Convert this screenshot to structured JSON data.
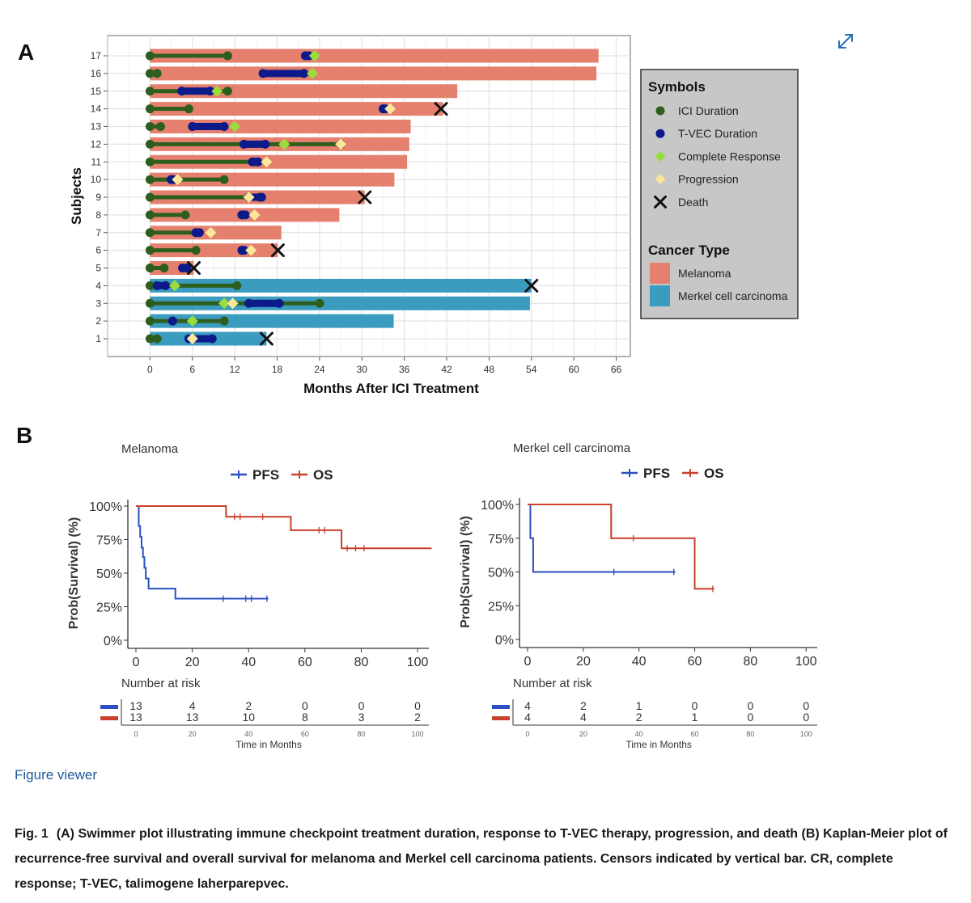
{
  "panel_a": {
    "letter": "A"
  },
  "panel_b": {
    "letter": "B"
  },
  "legend": {
    "symbols_title": "Symbols",
    "symbols": [
      {
        "label": "ICI Duration",
        "shape": "circle",
        "color": "#2e5e1e"
      },
      {
        "label": "T-VEC Duration",
        "shape": "circle",
        "color": "#0d1a8a"
      },
      {
        "label": "Complete Response",
        "shape": "diamond",
        "color": "#9adc3c"
      },
      {
        "label": "Progression",
        "shape": "diamond",
        "color": "#fbe79a"
      },
      {
        "label": "Death",
        "shape": "x",
        "color": "#111111"
      }
    ],
    "cancer_title": "Cancer Type",
    "cancer_types": [
      {
        "label": "Melanoma",
        "color": "#e5806e"
      },
      {
        "label": "Merkel cell carcinoma",
        "color": "#3b9cbf"
      }
    ]
  },
  "chart_data": [
    {
      "type": "swimmer",
      "xlabel": "Months After ICI Treatment",
      "ylabel": "Subjects",
      "xlim": [
        -6,
        68
      ],
      "xticks": [
        0,
        6,
        12,
        18,
        24,
        30,
        36,
        42,
        48,
        54,
        60,
        66
      ],
      "colors": {
        "Melanoma": "#e5806e",
        "Merkel cell carcinoma": "#3b9cbf",
        "ici": "#2e5e1e",
        "tvec": "#0d1a8a",
        "cr": "#9adc3c",
        "progression": "#fbe79a",
        "death": "#111111"
      },
      "subjects": [
        {
          "id": "1",
          "cancer": "Merkel cell carcinoma",
          "end": 16.5,
          "ici": [
            0,
            1
          ],
          "tvec": [
            5.5,
            8.8
          ],
          "cr": null,
          "progression": 6,
          "death": 16.5
        },
        {
          "id": "2",
          "cancer": "Merkel cell carcinoma",
          "end": 34.5,
          "ici": [
            0,
            10.5
          ],
          "tvec": [
            3.2,
            3.2
          ],
          "cr": 6,
          "progression": null,
          "death": null
        },
        {
          "id": "3",
          "cancer": "Merkel cell carcinoma",
          "end": 53.8,
          "ici": [
            0,
            24
          ],
          "tvec": [
            14,
            18.3
          ],
          "cr": 10.5,
          "progression": 11.7,
          "death": null
        },
        {
          "id": "4",
          "cancer": "Merkel cell carcinoma",
          "end": 54,
          "ici": [
            0,
            12.3
          ],
          "tvec": [
            1,
            2.2
          ],
          "cr": 3.5,
          "progression": null,
          "death": 54
        },
        {
          "id": "5",
          "cancer": "Melanoma",
          "end": 6.2,
          "ici": [
            0,
            2
          ],
          "tvec": [
            4.6,
            5.2
          ],
          "cr": null,
          "progression": null,
          "death": 6.2
        },
        {
          "id": "6",
          "cancer": "Melanoma",
          "end": 18.1,
          "ici": [
            0,
            6.5
          ],
          "tvec": [
            13,
            13.3
          ],
          "cr": null,
          "progression": 14.3,
          "death": 18.1
        },
        {
          "id": "7",
          "cancer": "Melanoma",
          "end": 18.6,
          "ici": [
            0,
            6.5
          ],
          "tvec": [
            6.5,
            7
          ],
          "cr": null,
          "progression": 8.6,
          "death": null
        },
        {
          "id": "8",
          "cancer": "Melanoma",
          "end": 26.8,
          "ici": [
            0,
            5
          ],
          "tvec": [
            13,
            13.5
          ],
          "cr": null,
          "progression": 14.8,
          "death": null
        },
        {
          "id": "9",
          "cancer": "Melanoma",
          "end": 30.4,
          "ici": [
            0,
            15.5
          ],
          "tvec": [
            14,
            15.8
          ],
          "cr": null,
          "progression": 14,
          "death": 30.4
        },
        {
          "id": "10",
          "cancer": "Melanoma",
          "end": 34.6,
          "ici": [
            0,
            10.5
          ],
          "tvec": [
            3,
            3.3
          ],
          "cr": null,
          "progression": 3.9,
          "death": null
        },
        {
          "id": "11",
          "cancer": "Melanoma",
          "end": 36.4,
          "ici": [
            0,
            15
          ],
          "tvec": [
            14.5,
            15.3
          ],
          "cr": null,
          "progression": 16.5,
          "death": null
        },
        {
          "id": "12",
          "cancer": "Melanoma",
          "end": 36.7,
          "ici": [
            0,
            27
          ],
          "tvec": [
            13.3,
            16.3
          ],
          "cr": 19,
          "progression": 27,
          "death": null
        },
        {
          "id": "13",
          "cancer": "Melanoma",
          "end": 36.9,
          "ici": [
            0,
            1.5
          ],
          "tvec": [
            6,
            10.5
          ],
          "cr": 12,
          "progression": null,
          "death": null
        },
        {
          "id": "14",
          "cancer": "Melanoma",
          "end": 41.5,
          "ici": [
            0,
            5.5
          ],
          "tvec": [
            33,
            33.3
          ],
          "cr": null,
          "progression": 34,
          "death": 41.2
        },
        {
          "id": "15",
          "cancer": "Melanoma",
          "end": 43.5,
          "ici": [
            0,
            11
          ],
          "tvec": [
            4.5,
            8.5
          ],
          "cr": 9.5,
          "progression": null,
          "death": null
        },
        {
          "id": "16",
          "cancer": "Melanoma",
          "end": 63.2,
          "ici": [
            0,
            1
          ],
          "tvec": [
            16,
            21.8
          ],
          "cr": 23,
          "progression": null,
          "death": null
        },
        {
          "id": "17",
          "cancer": "Melanoma",
          "end": 63.5,
          "ici": [
            0,
            11
          ],
          "tvec": [
            22,
            22.5
          ],
          "cr": 23.3,
          "progression": null,
          "death": null
        }
      ]
    },
    {
      "type": "line",
      "title": "Melanoma",
      "ylabel": "Prob(Survival) (%)",
      "xlim": [
        0,
        104
      ],
      "ylim": [
        0,
        100
      ],
      "xticks": [
        0,
        20,
        40,
        60,
        80,
        100
      ],
      "yticks": [
        "0%",
        "25%",
        "50%",
        "75%",
        "100%"
      ],
      "legend": "top",
      "series": [
        {
          "name": "PFS",
          "color": "#2a4fc0",
          "steps": [
            [
              0,
              100
            ],
            [
              1,
              85
            ],
            [
              1.5,
              77
            ],
            [
              2,
              69
            ],
            [
              2.5,
              62
            ],
            [
              3,
              54
            ],
            [
              3.5,
              46
            ],
            [
              4.5,
              38.5
            ],
            [
              14,
              31
            ],
            [
              47,
              31
            ]
          ],
          "censors": [
            [
              31,
              31
            ],
            [
              39,
              31
            ],
            [
              41,
              31
            ],
            [
              46.5,
              31
            ]
          ]
        },
        {
          "name": "OS",
          "color": "#c9402c",
          "steps": [
            [
              0,
              100
            ],
            [
              32,
              100
            ],
            [
              32,
              92
            ],
            [
              55,
              92
            ],
            [
              55,
              82
            ],
            [
              73,
              82
            ],
            [
              73,
              68.5
            ],
            [
              105,
              68.5
            ]
          ],
          "censors": [
            [
              35,
              92
            ],
            [
              37,
              92
            ],
            [
              45,
              92
            ],
            [
              65,
              82
            ],
            [
              67,
              82
            ],
            [
              75,
              68.5
            ],
            [
              78,
              68.5
            ],
            [
              81,
              68.5
            ]
          ]
        }
      ],
      "risk_table": {
        "title": "Number at risk",
        "xlabel": "Time in Months",
        "times": [
          0,
          20,
          40,
          60,
          80,
          100
        ],
        "rows": [
          {
            "color": "#2a4fc0",
            "values": [
              "13",
              "4",
              "2",
              "0",
              "0",
              "0"
            ]
          },
          {
            "color": "#c9402c",
            "values": [
              "13",
              "13",
              "10",
              "8",
              "3",
              "2"
            ]
          }
        ]
      }
    },
    {
      "type": "line",
      "title": "Merkel cell carcinoma",
      "ylabel": "Prob(Survival) (%)",
      "xlim": [
        0,
        104
      ],
      "ylim": [
        0,
        100
      ],
      "xticks": [
        0,
        20,
        40,
        60,
        80,
        100
      ],
      "yticks": [
        "0%",
        "25%",
        "50%",
        "75%",
        "100%"
      ],
      "legend": "top",
      "series": [
        {
          "name": "PFS",
          "color": "#2a4fc0",
          "steps": [
            [
              0,
              100
            ],
            [
              1,
              100
            ],
            [
              1,
              75
            ],
            [
              2,
              75
            ],
            [
              2,
              50
            ],
            [
              53,
              50
            ]
          ],
          "censors": [
            [
              31,
              50
            ],
            [
              52.5,
              50
            ]
          ]
        },
        {
          "name": "OS",
          "color": "#c9402c",
          "steps": [
            [
              0,
              100
            ],
            [
              30,
              100
            ],
            [
              30,
              75
            ],
            [
              60,
              75
            ],
            [
              60,
              37.5
            ],
            [
              67,
              37.5
            ]
          ],
          "censors": [
            [
              38,
              75
            ],
            [
              66.5,
              37.5
            ]
          ]
        }
      ],
      "risk_table": {
        "title": "Number at risk",
        "xlabel": "Time in Months",
        "times": [
          0,
          20,
          40,
          60,
          80,
          100
        ],
        "rows": [
          {
            "color": "#2a4fc0",
            "values": [
              "4",
              "2",
              "1",
              "0",
              "0",
              "0"
            ]
          },
          {
            "color": "#c9402c",
            "values": [
              "4",
              "4",
              "2",
              "1",
              "0",
              "0"
            ]
          }
        ]
      }
    }
  ],
  "figure_viewer_label": "Figure viewer",
  "expand_icon": "expand-diagonal-arrows-icon",
  "caption": {
    "label": "Fig. 1",
    "text": "(A) Swimmer plot illustrating immune checkpoint treatment duration, response to T-VEC therapy, progression, and death (B) Kaplan-Meier plot of recurrence-free survival and overall survival for melanoma and Merkel cell carcinoma patients. Censors indicated by vertical bar. CR, complete response; T-VEC, talimogene laherparepvec."
  }
}
